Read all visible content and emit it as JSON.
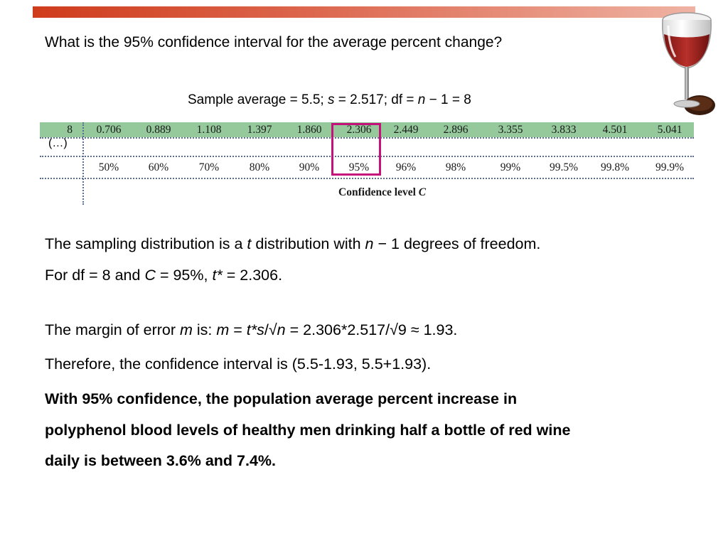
{
  "question": "What is the 95% confidence interval for the average percent change?",
  "sample_line": {
    "part1": "Sample average = 5.5; ",
    "s_var": "s",
    "part2": " = 2.517; df = ",
    "n_var": "n",
    "part3": " − 1 = 8"
  },
  "t_table": {
    "df_label": "8",
    "ellipsis": "(…)",
    "t_values": [
      "0.706",
      "0.889",
      "1.108",
      "1.397",
      "1.860",
      "2.306",
      "2.449",
      "2.896",
      "3.355",
      "3.833",
      "4.501",
      "5.041"
    ],
    "confidence_levels": [
      "50%",
      "60%",
      "70%",
      "80%",
      "90%",
      "95%",
      "96%",
      "98%",
      "99%",
      "99.5%",
      "99.8%",
      "99.9%"
    ],
    "caption_text": "Confidence level ",
    "caption_var": "C",
    "highlight_color": "#c4127a",
    "row_color": "#95c99c"
  },
  "line1": {
    "part1": "The sampling distribution is a ",
    "t_var": "t",
    "part2": " distribution with ",
    "n_var": "n",
    "part3": " − 1 degrees of freedom."
  },
  "line2": {
    "part1": "For df = 8 and ",
    "c_var": "C",
    "part2": " = 95%, ",
    "t_var": "t*",
    "part3": " = 2.306."
  },
  "line3": {
    "part1": "The margin of error ",
    "m_var": "m",
    "part2": " is: ",
    "m_var2": "m",
    "part3": " = ",
    "t_var": "t*s",
    "part4": "/√",
    "n_var": "n",
    "part5": " = 2.306*2.517/√9 ≈ 1.93."
  },
  "line4": "Therefore, the confidence interval is (5.5-1.93, 5.5+1.93).",
  "conclusion": [
    "With 95% confidence, the population average percent increase in",
    "polyphenol blood levels of healthy men drinking half a bottle of red wine",
    "daily is between 3.6% and 7.4%."
  ],
  "colors": {
    "top_bar_start": "#cf3c1c",
    "top_bar_end": "#efb3a3",
    "wine": "#a3201e"
  },
  "icons": {
    "decoration": "wine-glass-icon"
  }
}
